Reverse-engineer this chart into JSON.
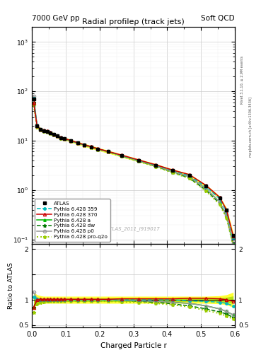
{
  "title_top_left": "7000 GeV pp",
  "title_top_right": "Soft QCD",
  "main_title": "Radial profileρ (track jets)",
  "watermark": "ATLAS_2011_I919017",
  "right_label_top": "Rivet 3.1.10, ≥ 2.9M events",
  "right_label_bottom": "mcplots.cern.ch [arXiv:1306.3436]",
  "xlabel": "Charged Particle r",
  "ylabel_ratio": "Ratio to ATLAS",
  "r_values": [
    0.005,
    0.015,
    0.025,
    0.035,
    0.045,
    0.055,
    0.065,
    0.075,
    0.085,
    0.095,
    0.115,
    0.135,
    0.155,
    0.175,
    0.195,
    0.225,
    0.265,
    0.315,
    0.365,
    0.415,
    0.465,
    0.515,
    0.555,
    0.575,
    0.595
  ],
  "atlas_data": [
    70,
    20,
    17,
    16,
    15.5,
    14.5,
    13.5,
    12.5,
    11.5,
    11,
    10,
    9,
    8.2,
    7.5,
    6.8,
    6.0,
    5.0,
    4.0,
    3.2,
    2.5,
    2.0,
    1.2,
    0.7,
    0.4,
    0.12
  ],
  "atlas_err_rel": [
    0.15,
    0.1,
    0.08,
    0.07,
    0.07,
    0.07,
    0.07,
    0.07,
    0.07,
    0.07,
    0.07,
    0.07,
    0.07,
    0.07,
    0.07,
    0.07,
    0.07,
    0.07,
    0.07,
    0.07,
    0.07,
    0.07,
    0.08,
    0.1,
    0.15
  ],
  "pythia_359_ratio": [
    1.05,
    1.02,
    1.0,
    1.0,
    1.0,
    1.0,
    1.0,
    1.0,
    1.0,
    1.0,
    1.0,
    1.0,
    1.0,
    1.0,
    1.0,
    1.0,
    1.0,
    1.0,
    1.0,
    1.0,
    0.98,
    0.97,
    0.95,
    0.93,
    0.88
  ],
  "pythia_370_ratio": [
    0.85,
    1.0,
    1.01,
    1.01,
    1.01,
    1.01,
    1.01,
    1.01,
    1.01,
    1.01,
    1.01,
    1.01,
    1.01,
    1.01,
    1.01,
    1.01,
    1.02,
    1.02,
    1.02,
    1.02,
    1.03,
    1.03,
    1.02,
    1.0,
    0.97
  ],
  "pythia_a_ratio": [
    0.85,
    1.0,
    1.0,
    1.0,
    1.0,
    1.0,
    1.0,
    1.0,
    1.0,
    1.0,
    1.0,
    1.0,
    1.0,
    1.0,
    1.0,
    1.0,
    0.99,
    0.98,
    0.97,
    0.95,
    0.93,
    0.88,
    0.82,
    0.77,
    0.7
  ],
  "pythia_dw_ratio": [
    0.85,
    1.0,
    1.0,
    1.0,
    1.0,
    1.0,
    1.0,
    1.0,
    1.0,
    1.0,
    1.0,
    1.0,
    1.0,
    1.0,
    1.0,
    1.0,
    0.99,
    0.97,
    0.95,
    0.92,
    0.88,
    0.82,
    0.76,
    0.72,
    0.65
  ],
  "pythia_p0_ratio": [
    1.15,
    1.02,
    1.0,
    1.0,
    1.0,
    1.0,
    1.0,
    1.0,
    1.0,
    1.0,
    1.0,
    1.0,
    1.0,
    1.0,
    1.0,
    1.0,
    0.99,
    0.98,
    0.97,
    0.95,
    0.93,
    0.88,
    0.82,
    0.77,
    0.7
  ],
  "pythia_proq2o_ratio": [
    0.75,
    0.92,
    0.95,
    0.96,
    0.97,
    0.97,
    0.97,
    0.97,
    0.97,
    0.97,
    0.97,
    0.97,
    0.97,
    0.97,
    0.97,
    0.97,
    0.96,
    0.95,
    0.93,
    0.9,
    0.86,
    0.79,
    0.73,
    0.68,
    0.62
  ],
  "bg_color": "#ffffff",
  "atlas_color": "#000000",
  "p359_color": "#00bbbb",
  "p370_color": "#cc0000",
  "pa_color": "#00bb00",
  "pdw_color": "#007700",
  "pp0_color": "#999999",
  "pproq2o_color": "#99cc00",
  "ylim_main": [
    0.08,
    2000
  ],
  "ylim_ratio": [
    0.45,
    2.1
  ],
  "xlim": [
    0.0,
    0.6
  ]
}
